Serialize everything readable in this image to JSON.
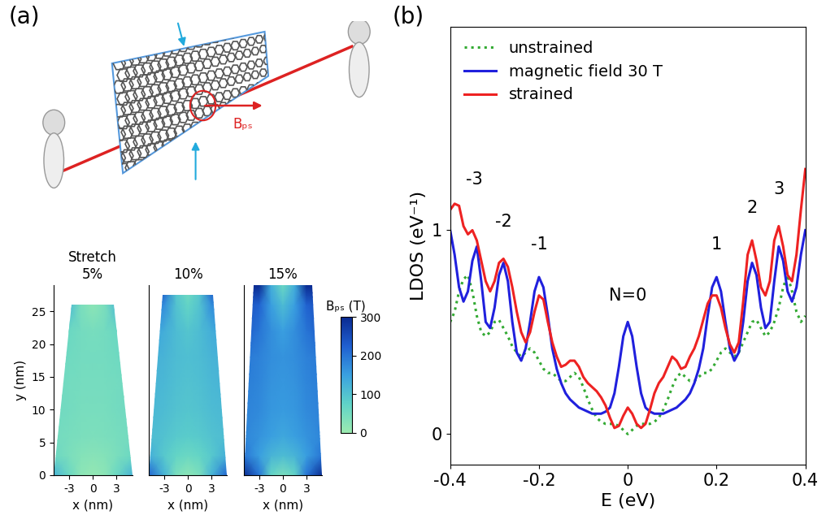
{
  "panel_labels": [
    "(a)",
    "(b)"
  ],
  "illustration": {
    "label": "Bₚₛ"
  },
  "chart_data": [
    {
      "type": "heatmap",
      "title": "Stretch\n5%",
      "xlabel": "x (nm)",
      "ylabel": "y (nm)",
      "xlim": [
        -5,
        5
      ],
      "ylim": [
        0,
        29
      ],
      "xticks": [
        -3,
        0,
        3
      ],
      "yticks": [
        0,
        5,
        10,
        15,
        20,
        25
      ],
      "shape": {
        "bottom_halfwidth": 5,
        "top_halfwidth": 2.7,
        "height": 26
      },
      "x": [
        -5,
        -3,
        -1.5,
        0,
        1.5,
        3,
        5
      ],
      "y": [
        0,
        3,
        6,
        10,
        14,
        18,
        22,
        26,
        29
      ],
      "cells": [
        [
          120,
          60,
          20,
          10,
          20,
          60,
          120
        ],
        [
          60,
          40,
          30,
          25,
          30,
          40,
          60
        ],
        [
          50,
          45,
          40,
          38,
          40,
          45,
          50
        ],
        [
          55,
          50,
          45,
          45,
          45,
          50,
          55
        ],
        [
          55,
          50,
          48,
          48,
          48,
          50,
          55
        ],
        [
          60,
          55,
          50,
          50,
          50,
          55,
          60
        ],
        [
          70,
          60,
          50,
          45,
          50,
          60,
          70
        ],
        [
          120,
          110,
          40,
          20,
          40,
          110,
          120
        ],
        [
          130,
          120,
          45,
          20,
          45,
          120,
          130
        ]
      ]
    },
    {
      "type": "heatmap",
      "title": "10%",
      "xlabel": "x (nm)",
      "xlim": [
        -5,
        5
      ],
      "ylim": [
        0,
        29
      ],
      "xticks": [
        -3,
        0,
        3
      ],
      "shape": {
        "bottom_halfwidth": 5,
        "top_halfwidth": 3.2,
        "height": 27.5
      },
      "x": [
        -5,
        -3,
        -1.5,
        0,
        1.5,
        3,
        5
      ],
      "y": [
        0,
        3,
        6,
        10,
        14,
        18,
        22,
        26,
        29
      ],
      "cells": [
        [
          220,
          120,
          40,
          20,
          40,
          120,
          220
        ],
        [
          130,
          90,
          70,
          60,
          70,
          90,
          130
        ],
        [
          110,
          100,
          90,
          85,
          90,
          100,
          110
        ],
        [
          115,
          110,
          100,
          95,
          100,
          110,
          115
        ],
        [
          120,
          115,
          105,
          100,
          105,
          115,
          120
        ],
        [
          125,
          120,
          110,
          105,
          110,
          120,
          125
        ],
        [
          150,
          130,
          110,
          95,
          110,
          130,
          150
        ],
        [
          200,
          170,
          100,
          70,
          100,
          170,
          200
        ],
        [
          260,
          240,
          90,
          45,
          90,
          240,
          260
        ]
      ]
    },
    {
      "type": "heatmap",
      "title": "15%",
      "xlabel": "x (nm)",
      "xlim": [
        -5,
        5
      ],
      "ylim": [
        0,
        29
      ],
      "xticks": [
        -3,
        0,
        3
      ],
      "shape": {
        "bottom_halfwidth": 5,
        "top_halfwidth": 3.7,
        "height": 29
      },
      "x": [
        -5,
        -3,
        -1.5,
        0,
        1.5,
        3,
        5
      ],
      "y": [
        0,
        3,
        6,
        10,
        14,
        18,
        22,
        26,
        29
      ],
      "cells": [
        [
          300,
          200,
          70,
          40,
          70,
          200,
          300
        ],
        [
          200,
          150,
          120,
          110,
          120,
          150,
          200
        ],
        [
          180,
          165,
          150,
          140,
          150,
          165,
          180
        ],
        [
          185,
          175,
          160,
          155,
          160,
          175,
          185
        ],
        [
          190,
          180,
          165,
          160,
          165,
          180,
          190
        ],
        [
          195,
          185,
          170,
          165,
          170,
          185,
          195
        ],
        [
          230,
          200,
          170,
          150,
          170,
          200,
          230
        ],
        [
          250,
          220,
          150,
          110,
          150,
          220,
          250
        ],
        [
          300,
          300,
          130,
          60,
          130,
          300,
          300
        ]
      ],
      "colorbar": {
        "label": "Bₚₛ (T)",
        "range": [
          0,
          300
        ],
        "ticks": [
          0,
          100,
          200,
          300
        ]
      }
    },
    {
      "type": "line",
      "xlabel": "E (eV)",
      "ylabel": "LDOS (eV⁻¹)",
      "xlim": [
        -0.4,
        0.4
      ],
      "ylim": [
        -0.15,
        2.0
      ],
      "xticks": [
        -0.4,
        -0.2,
        0,
        0.2,
        0.4
      ],
      "yticks": [
        0,
        1
      ],
      "legend": "upper left",
      "x": [
        -0.4,
        -0.39,
        -0.38,
        -0.37,
        -0.36,
        -0.35,
        -0.34,
        -0.33,
        -0.32,
        -0.31,
        -0.3,
        -0.29,
        -0.28,
        -0.27,
        -0.26,
        -0.25,
        -0.24,
        -0.23,
        -0.22,
        -0.21,
        -0.2,
        -0.19,
        -0.18,
        -0.17,
        -0.16,
        -0.15,
        -0.14,
        -0.13,
        -0.12,
        -0.11,
        -0.1,
        -0.09,
        -0.08,
        -0.07,
        -0.06,
        -0.05,
        -0.04,
        -0.03,
        -0.02,
        -0.01,
        0.0,
        0.01,
        0.02,
        0.03,
        0.04,
        0.05,
        0.06,
        0.07,
        0.08,
        0.09,
        0.1,
        0.11,
        0.12,
        0.13,
        0.14,
        0.15,
        0.16,
        0.17,
        0.18,
        0.19,
        0.2,
        0.21,
        0.22,
        0.23,
        0.24,
        0.25,
        0.26,
        0.27,
        0.28,
        0.29,
        0.3,
        0.31,
        0.32,
        0.33,
        0.34,
        0.35,
        0.36,
        0.37,
        0.38,
        0.39,
        0.4
      ],
      "series": [
        {
          "name": "unstrained",
          "color": "#33aa33",
          "line_style": "dotted",
          "values": [
            0.55,
            0.6,
            0.7,
            0.76,
            0.78,
            0.7,
            0.58,
            0.5,
            0.48,
            0.5,
            0.55,
            0.56,
            0.52,
            0.48,
            0.43,
            0.4,
            0.38,
            0.4,
            0.42,
            0.4,
            0.36,
            0.32,
            0.3,
            0.3,
            0.28,
            0.26,
            0.26,
            0.28,
            0.3,
            0.28,
            0.23,
            0.17,
            0.12,
            0.08,
            0.06,
            0.05,
            0.05,
            0.05,
            0.04,
            0.02,
            0.0,
            0.02,
            0.04,
            0.05,
            0.05,
            0.05,
            0.06,
            0.08,
            0.12,
            0.17,
            0.23,
            0.28,
            0.3,
            0.28,
            0.26,
            0.26,
            0.28,
            0.3,
            0.3,
            0.32,
            0.36,
            0.4,
            0.42,
            0.4,
            0.38,
            0.4,
            0.45,
            0.5,
            0.55,
            0.56,
            0.52,
            0.48,
            0.5,
            0.55,
            0.62,
            0.72,
            0.78,
            0.7,
            0.6,
            0.55,
            0.58
          ]
        },
        {
          "name": "magnetic field 30 T",
          "color": "#2020dd",
          "line_style": "solid",
          "values": [
            1.0,
            0.88,
            0.72,
            0.65,
            0.7,
            0.85,
            0.92,
            0.75,
            0.55,
            0.52,
            0.62,
            0.78,
            0.84,
            0.75,
            0.55,
            0.4,
            0.36,
            0.42,
            0.55,
            0.7,
            0.77,
            0.72,
            0.58,
            0.42,
            0.32,
            0.25,
            0.2,
            0.17,
            0.15,
            0.13,
            0.12,
            0.11,
            0.1,
            0.1,
            0.1,
            0.11,
            0.13,
            0.2,
            0.33,
            0.48,
            0.55,
            0.48,
            0.33,
            0.2,
            0.13,
            0.11,
            0.1,
            0.1,
            0.1,
            0.11,
            0.12,
            0.13,
            0.15,
            0.17,
            0.2,
            0.25,
            0.32,
            0.42,
            0.58,
            0.72,
            0.77,
            0.7,
            0.55,
            0.42,
            0.36,
            0.4,
            0.55,
            0.75,
            0.84,
            0.78,
            0.62,
            0.52,
            0.55,
            0.75,
            0.92,
            0.85,
            0.7,
            0.65,
            0.72,
            0.88,
            1.0
          ]
        },
        {
          "name": "strained",
          "color": "#ee2222",
          "line_style": "solid",
          "values": [
            1.1,
            1.13,
            1.12,
            1.02,
            0.98,
            1.0,
            0.95,
            0.85,
            0.75,
            0.7,
            0.75,
            0.84,
            0.86,
            0.82,
            0.72,
            0.6,
            0.5,
            0.45,
            0.5,
            0.6,
            0.68,
            0.66,
            0.55,
            0.45,
            0.38,
            0.33,
            0.34,
            0.36,
            0.36,
            0.33,
            0.28,
            0.25,
            0.23,
            0.21,
            0.18,
            0.14,
            0.08,
            0.03,
            0.04,
            0.09,
            0.13,
            0.1,
            0.05,
            0.03,
            0.05,
            0.12,
            0.2,
            0.25,
            0.28,
            0.33,
            0.38,
            0.36,
            0.32,
            0.33,
            0.38,
            0.42,
            0.48,
            0.56,
            0.64,
            0.68,
            0.68,
            0.62,
            0.52,
            0.44,
            0.4,
            0.45,
            0.65,
            0.88,
            0.95,
            0.85,
            0.72,
            0.68,
            0.75,
            0.95,
            1.02,
            0.92,
            0.78,
            0.75,
            0.88,
            1.1,
            1.3
          ]
        }
      ],
      "annotations": [
        {
          "text": "-3",
          "x": -0.345,
          "y": 1.25
        },
        {
          "text": "-2",
          "x": -0.28,
          "y": 1.04
        },
        {
          "text": "-1",
          "x": -0.2,
          "y": 0.93
        },
        {
          "text": "N=0",
          "x": 0.0,
          "y": 0.68
        },
        {
          "text": "1",
          "x": 0.2,
          "y": 0.93
        },
        {
          "text": "2",
          "x": 0.28,
          "y": 1.11
        },
        {
          "text": "3",
          "x": 0.34,
          "y": 1.2
        }
      ]
    }
  ]
}
